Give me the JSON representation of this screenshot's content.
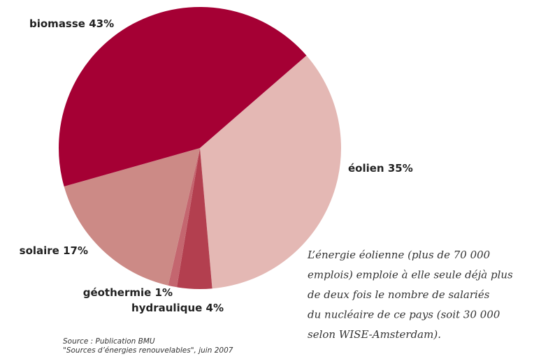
{
  "chart_data": {
    "type": "pie",
    "categories": [
      "éolien",
      "hydraulique",
      "géothermie",
      "solaire",
      "biomasse"
    ],
    "values": [
      35,
      4,
      1,
      17,
      43
    ],
    "value_labels": [
      "35%",
      "4%",
      "1%",
      "17%",
      "43%"
    ],
    "colors": [
      "#e4b8b4",
      "#b33f4f",
      "#c4666f",
      "#cc8a86",
      "#a50034"
    ],
    "annotation": [
      "L’énergie éolienne (plus de 70 000",
      "emplois) emploie à elle seule déjà plus",
      "de deux fois le nombre de salariés",
      "du nucléaire de ce pays (soit 30 000",
      "selon WISE-Amsterdam)."
    ],
    "source": [
      "Source : Publication BMU",
      "\"Sources d’énergies renouvelables\", juin 2007"
    ]
  }
}
